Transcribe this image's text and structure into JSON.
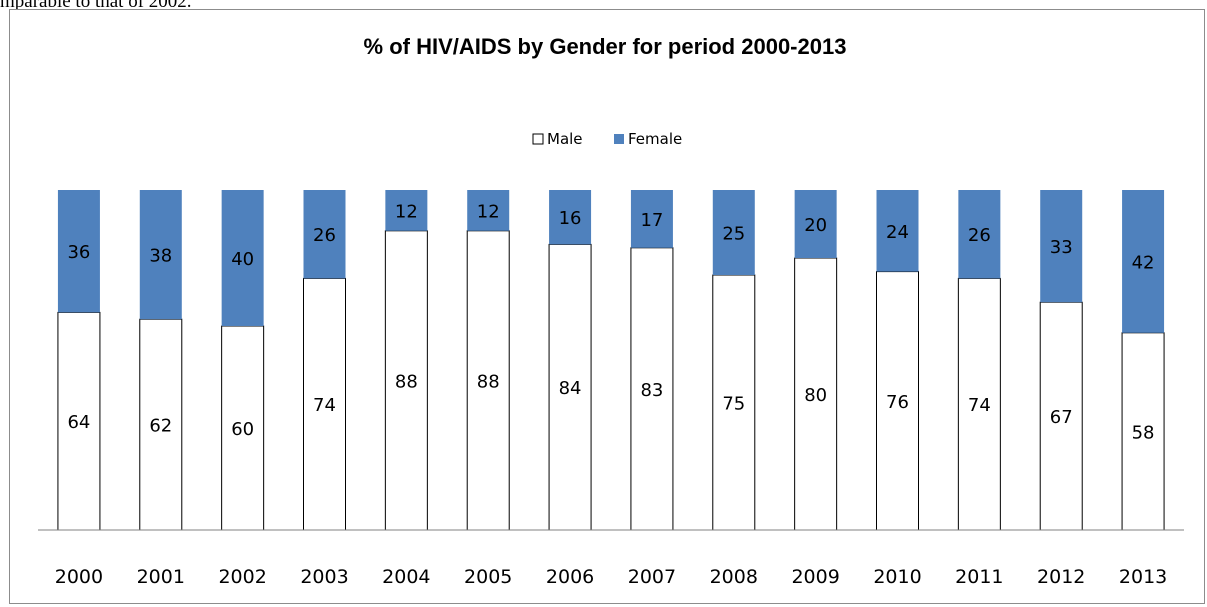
{
  "page_fragment": "mparable to that of 2002.",
  "chart_data": {
    "type": "bar",
    "stacked": true,
    "title": "% of HIV/AIDS by Gender for period 2000-2013",
    "categories": [
      "2000",
      "2001",
      "2002",
      "2003",
      "2004",
      "2005",
      "2006",
      "2007",
      "2008",
      "2009",
      "2010",
      "2011",
      "2012",
      "2013"
    ],
    "series": [
      {
        "name": "Male",
        "color": "#ffffff",
        "values": [
          64,
          62,
          60,
          74,
          88,
          88,
          84,
          83,
          75,
          80,
          76,
          74,
          67,
          58
        ]
      },
      {
        "name": "Female",
        "color": "#4f81bd",
        "values": [
          36,
          38,
          40,
          26,
          12,
          12,
          16,
          17,
          25,
          20,
          24,
          26,
          33,
          42
        ]
      }
    ],
    "ylim": [
      0,
      100
    ],
    "legend": "top-center",
    "grid": false,
    "colors": {
      "female": "#4f81bd",
      "male": "#ffffff",
      "bar_outline": "#000000",
      "axis": "#808080"
    }
  }
}
